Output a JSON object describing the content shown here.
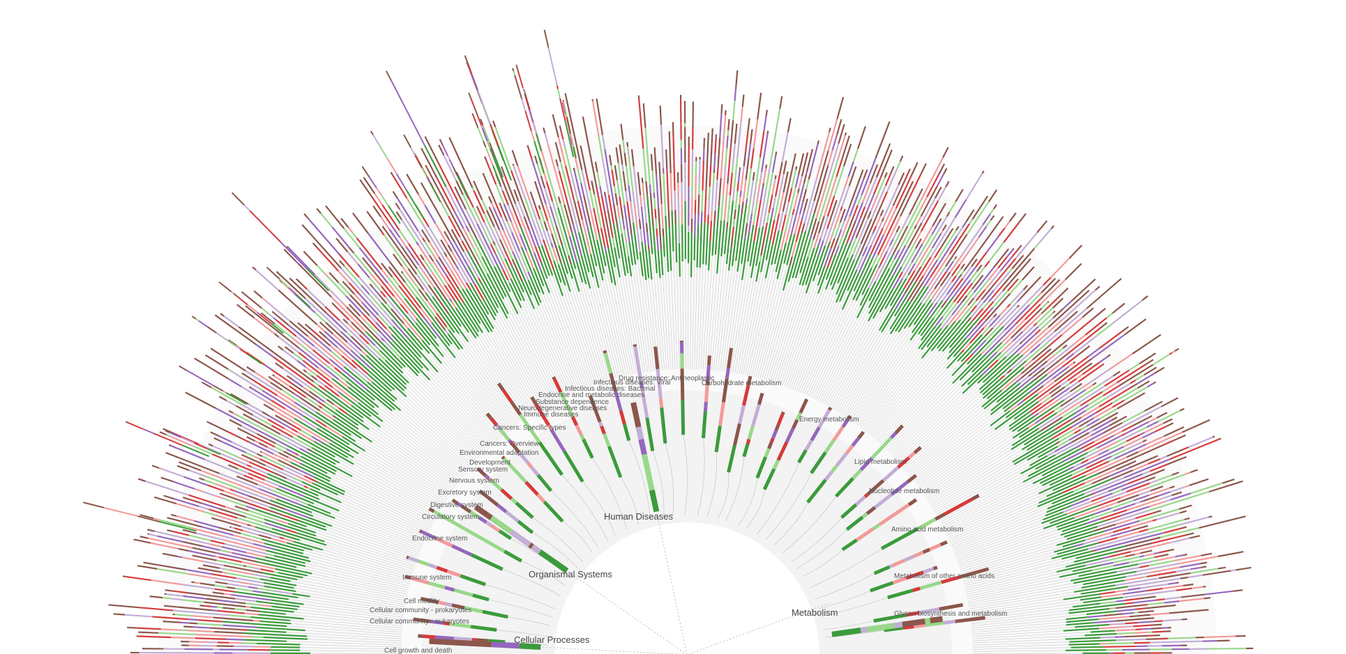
{
  "colors": {
    "green_dark": "#3b9b3b",
    "green_light": "#98d88a",
    "pink": "#f39a9a",
    "red": "#d63a3a",
    "lavender": "#c3aed6",
    "purple": "#9467bd",
    "brown": "#8c564b",
    "ring_bg": "#f3f3f3",
    "link": "#bdbdbd"
  },
  "major_labels": [
    {
      "id": "human-diseases",
      "text": "Human Diseases"
    },
    {
      "id": "organismal-systems",
      "text": "Organismal Systems"
    },
    {
      "id": "cellular-processes",
      "text": "Cellular Processes"
    },
    {
      "id": "metabolism",
      "text": "Metabolism"
    }
  ],
  "sub_labels": [
    {
      "id": "drug-resistance",
      "text": "Drug resistance: Antineoplastic"
    },
    {
      "id": "infectious-viral",
      "text": "Infectious diseases: Viral"
    },
    {
      "id": "infectious-bacterial",
      "text": "Infectious diseases: Bacterial"
    },
    {
      "id": "endocrine-metabolic",
      "text": "Endocrine and metabolic diseases"
    },
    {
      "id": "substance-dependence",
      "text": "Substance dependence"
    },
    {
      "id": "neurodegenerative",
      "text": "Neurodegenerative diseases"
    },
    {
      "id": "immune-diseases",
      "text": "Immune diseases"
    },
    {
      "id": "cancers-specific",
      "text": "Cancers: Specific types"
    },
    {
      "id": "cancers-overview",
      "text": "Cancers: Overview"
    },
    {
      "id": "environmental-adaptation",
      "text": "Environmental adaptation"
    },
    {
      "id": "development",
      "text": "Development"
    },
    {
      "id": "sensory-system",
      "text": "Sensory system"
    },
    {
      "id": "nervous-system",
      "text": "Nervous system"
    },
    {
      "id": "excretory-system",
      "text": "Excretory system"
    },
    {
      "id": "digestive-system",
      "text": "Digestive system"
    },
    {
      "id": "circulatory-system",
      "text": "Circulatory system"
    },
    {
      "id": "endocrine-system",
      "text": "Endocrine system"
    },
    {
      "id": "immune-system",
      "text": "Immune system"
    },
    {
      "id": "cell-motility",
      "text": "Cell motility"
    },
    {
      "id": "cellular-community-prokaryotes",
      "text": "Cellular community - prokaryotes"
    },
    {
      "id": "cellular-community-eukaryotes",
      "text": "Cellular community - eukaryotes"
    },
    {
      "id": "cell-growth-death",
      "text": "Cell growth and death"
    },
    {
      "id": "carbohydrate-metabolism",
      "text": "Carbohydrate metabolism"
    },
    {
      "id": "energy-metabolism",
      "text": "Energy metabolism"
    },
    {
      "id": "lipid-metabolism",
      "text": "Lipid metabolism"
    },
    {
      "id": "nucleotide-metabolism",
      "text": "Nucleotide metabolism"
    },
    {
      "id": "amino-acid-metabolism",
      "text": "Amino acid metabolism"
    },
    {
      "id": "other-amino-acids",
      "text": "Metabolism of other amino acids"
    },
    {
      "id": "glycan-biosynthesis",
      "text": "Glycan biosynthesis and metabolism"
    }
  ]
}
